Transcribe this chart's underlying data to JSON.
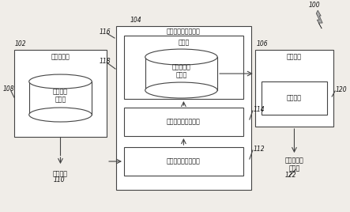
{
  "bg_color": "#f0ede8",
  "box_color": "#ffffff",
  "box_edge": "#444444",
  "text_color": "#111111",
  "line_color": "#444444",
  "label_100": "100",
  "label_102": "102",
  "label_104": "104",
  "label_106": "106",
  "label_108": "108",
  "label_110": "110",
  "label_112": "112",
  "label_114": "114",
  "label_116": "116",
  "label_118": "118",
  "label_120": "120",
  "label_122": "122",
  "text_model_store": "模型存储器",
  "text_digital_db": "数字模型\n数据库",
  "text_digital_model": "数字模型",
  "text_bracket_compute": "矫正器标记计算系统",
  "text_memory": "存储器",
  "text_bracket_db": "矫正器标记\n数据库",
  "text_bracket_layout": "矫正器标记布局电路",
  "text_bracket_pos": "矫正器标记定位电路",
  "text_mark_system": "标记系统",
  "text_control_system": "仿制系统",
  "text_marked_brace_line1": "标记的牙齿",
  "text_marked_brace_line2": "矫正器",
  "fontsize_main": 5.8,
  "fontsize_label": 5.5
}
